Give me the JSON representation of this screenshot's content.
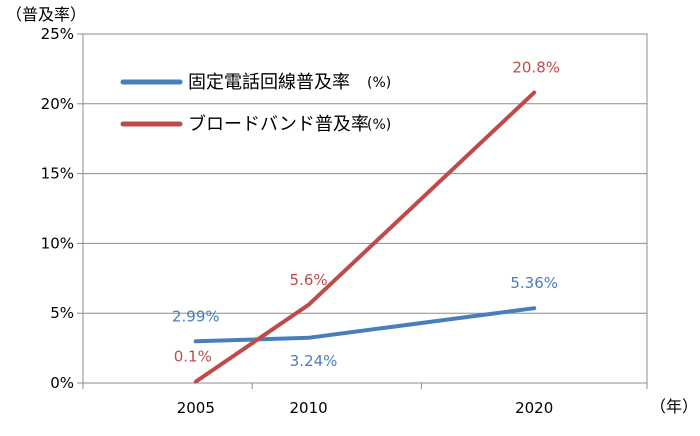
{
  "chart_data": {
    "type": "line",
    "ylabel": "（普及率）",
    "xlabel": "（年）",
    "categories": [
      "2005",
      "2010",
      "2020"
    ],
    "x": [
      2005,
      2010,
      2020
    ],
    "xlim": [
      2000,
      2025
    ],
    "ylim": [
      0,
      25
    ],
    "y_ticks": [
      {
        "value": 0,
        "label": "0%"
      },
      {
        "value": 5,
        "label": "5%"
      },
      {
        "value": 10,
        "label": "10%"
      },
      {
        "value": 15,
        "label": "15%"
      },
      {
        "value": 20,
        "label": "20%"
      },
      {
        "value": 25,
        "label": "25%"
      }
    ],
    "grid": true,
    "legend_position": "top-left",
    "series": [
      {
        "name": "固定電話回線普及率",
        "unit": "(%)",
        "color": "#4A7EBB",
        "values": [
          2.99,
          3.24,
          5.36
        ],
        "labels": [
          "2.99%",
          "3.24%",
          "5.36%"
        ]
      },
      {
        "name": "ブロードバンド普及率",
        "unit": "(%)",
        "color": "#BE4B48",
        "values": [
          0.1,
          5.6,
          20.8
        ],
        "labels": [
          "0.1%",
          "5.6%",
          "20.8%"
        ]
      }
    ]
  }
}
